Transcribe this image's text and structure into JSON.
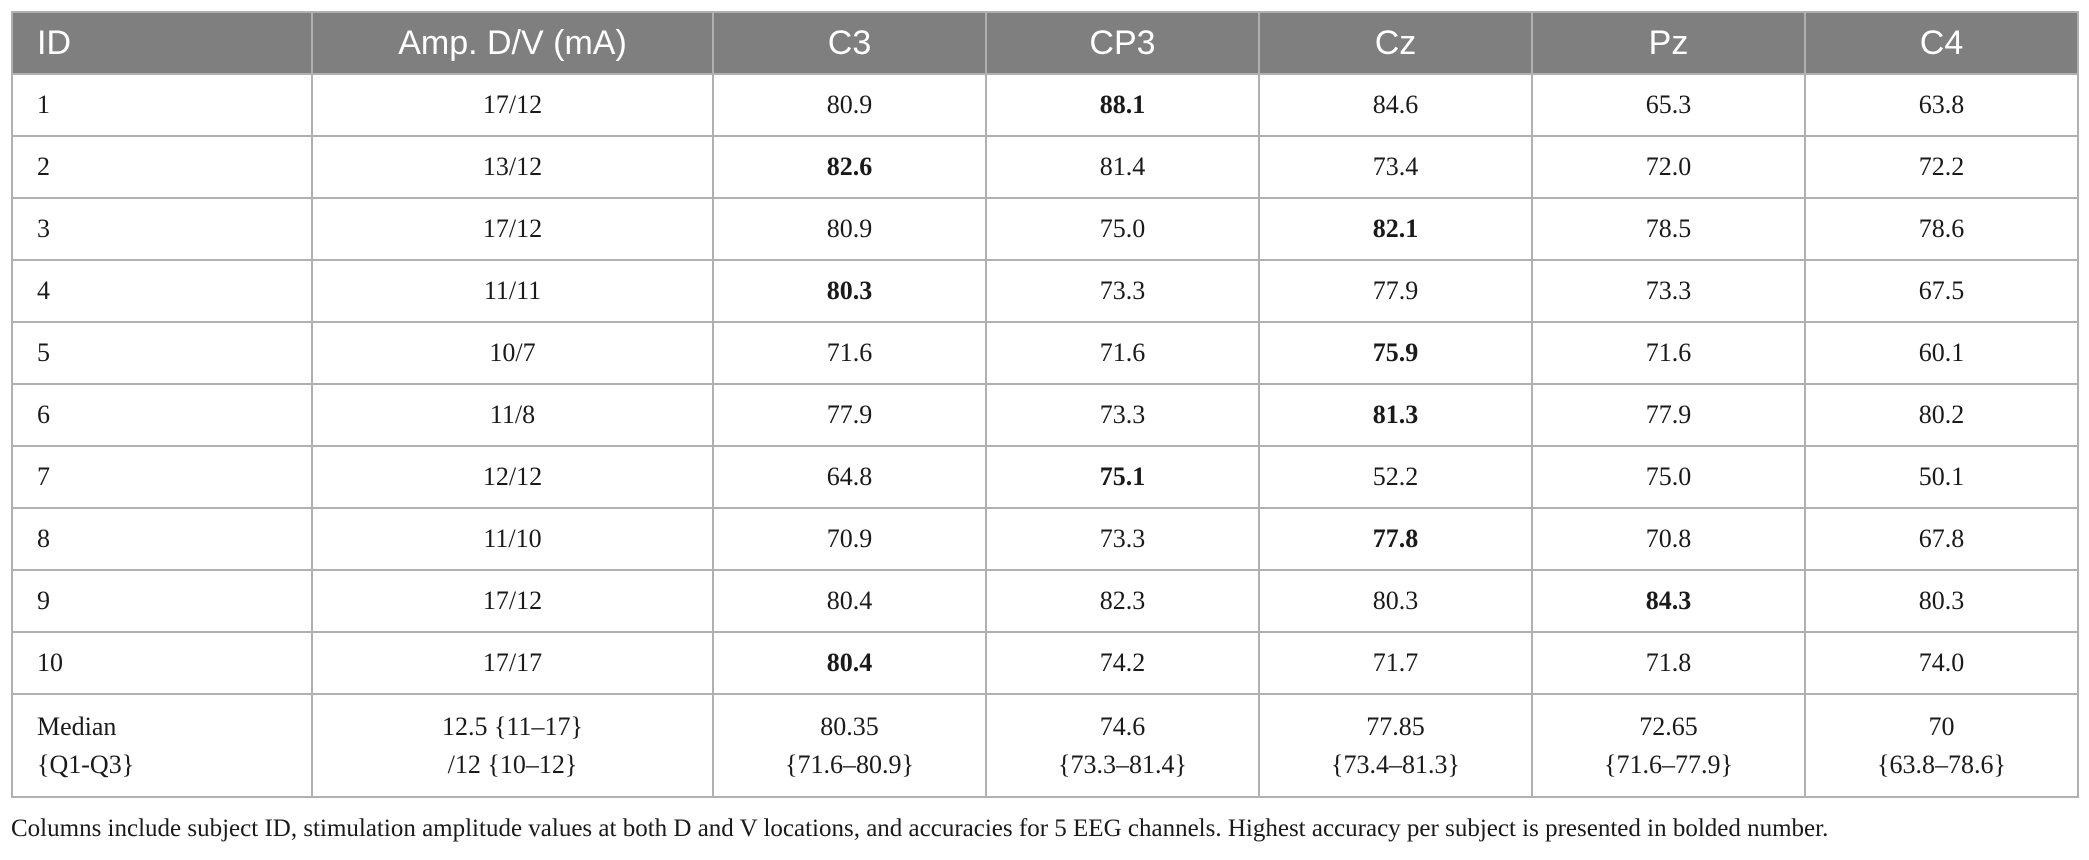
{
  "table": {
    "headers": [
      "ID",
      "Amp. D/V (mA)",
      "C3",
      "CP3",
      "Cz",
      "Pz",
      "C4"
    ],
    "rows": [
      {
        "id": "1",
        "amp": "17/12",
        "values": [
          "80.9",
          "88.1",
          "84.6",
          "65.3",
          "63.8"
        ],
        "bold_index": 1
      },
      {
        "id": "2",
        "amp": "13/12",
        "values": [
          "82.6",
          "81.4",
          "73.4",
          "72.0",
          "72.2"
        ],
        "bold_index": 0
      },
      {
        "id": "3",
        "amp": "17/12",
        "values": [
          "80.9",
          "75.0",
          "82.1",
          "78.5",
          "78.6"
        ],
        "bold_index": 2
      },
      {
        "id": "4",
        "amp": "11/11",
        "values": [
          "80.3",
          "73.3",
          "77.9",
          "73.3",
          "67.5"
        ],
        "bold_index": 0
      },
      {
        "id": "5",
        "amp": "10/7",
        "values": [
          "71.6",
          "71.6",
          "75.9",
          "71.6",
          "60.1"
        ],
        "bold_index": 2
      },
      {
        "id": "6",
        "amp": "11/8",
        "values": [
          "77.9",
          "73.3",
          "81.3",
          "77.9",
          "80.2"
        ],
        "bold_index": 2
      },
      {
        "id": "7",
        "amp": "12/12",
        "values": [
          "64.8",
          "75.1",
          "52.2",
          "75.0",
          "50.1"
        ],
        "bold_index": 1
      },
      {
        "id": "8",
        "amp": "11/10",
        "values": [
          "70.9",
          "73.3",
          "77.8",
          "70.8",
          "67.8"
        ],
        "bold_index": 2
      },
      {
        "id": "9",
        "amp": "17/12",
        "values": [
          "80.4",
          "82.3",
          "80.3",
          "84.3",
          "80.3"
        ],
        "bold_index": 3
      },
      {
        "id": "10",
        "amp": "17/17",
        "values": [
          "80.4",
          "74.2",
          "71.7",
          "71.8",
          "74.0"
        ],
        "bold_index": 0
      }
    ],
    "median": {
      "label_line1": "Median",
      "label_line2": "{Q1-Q3}",
      "amp_line1": "12.5 {11–17}",
      "amp_line2": "/12 {10–12}",
      "values": [
        {
          "line1": "80.35",
          "line2": "{71.6–80.9}"
        },
        {
          "line1": "74.6",
          "line2": "{73.3–81.4}"
        },
        {
          "line1": "77.85",
          "line2": "{73.4–81.3}"
        },
        {
          "line1": "72.65",
          "line2": "{71.6–77.9}"
        },
        {
          "line1": "70",
          "line2": "{63.8–78.6}"
        }
      ]
    }
  },
  "footnote": "Columns include subject ID, stimulation amplitude values at both D and V locations, and accuracies for 5 EEG channels. Highest accuracy per subject is presented in bolded number.",
  "colors": {
    "header_bg": "#7f7f7f",
    "header_text": "#ffffff",
    "grid": "#b0b0b0"
  }
}
